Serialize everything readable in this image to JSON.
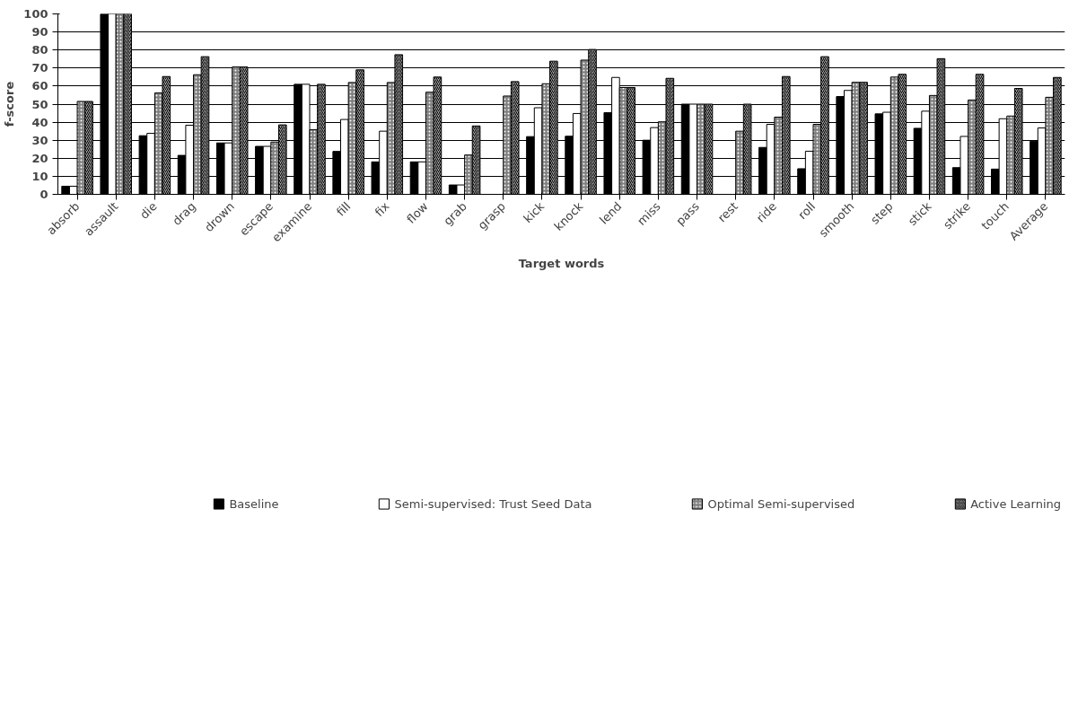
{
  "chart_data": {
    "type": "bar",
    "xlabel": "Target words",
    "ylabel": "f-score",
    "categories": [
      "absorb",
      "assault",
      "die",
      "drag",
      "drown",
      "escape",
      "examine",
      "fill",
      "fix",
      "flow",
      "grab",
      "grasp",
      "kick",
      "knock",
      "lend",
      "miss",
      "pass",
      "rest",
      "ride",
      "roll",
      "smooth",
      "step",
      "stick",
      "strike",
      "touch",
      "Average"
    ],
    "series": [
      {
        "name": "Baseline",
        "color": "#000000",
        "values": [
          4.5,
          100,
          32.5,
          21.6,
          28.5,
          26.6,
          61,
          23.8,
          18,
          18,
          5.2,
          null,
          32,
          32.2,
          45.3,
          30,
          50,
          null,
          26,
          14.2,
          54.2,
          44.6,
          36.6,
          14.8,
          14,
          29.4
        ]
      },
      {
        "name": "Semi-supervised: Trust Seed Data",
        "color": "#ffffff",
        "values": [
          4.5,
          100,
          33.8,
          38.3,
          28.5,
          26.6,
          61,
          41.5,
          35,
          18,
          5.2,
          null,
          48,
          44.8,
          64.8,
          37,
          50,
          null,
          38.8,
          23.9,
          57.6,
          45.5,
          46.1,
          32.1,
          41.9,
          36.8
        ]
      },
      {
        "name": "Optimal Semi-supervised",
        "color": "#808080",
        "values": [
          51.5,
          100,
          56.2,
          66.3,
          70.6,
          29,
          35.8,
          62,
          62,
          56.6,
          21.8,
          54.5,
          61.3,
          74.4,
          59.2,
          40.2,
          50,
          35,
          42.8,
          38.8,
          62.1,
          65,
          54.8,
          52.3,
          43.4,
          53.8
        ]
      },
      {
        "name": "Active Learning",
        "color": "#a0a0a0",
        "values": [
          51.5,
          100,
          65.3,
          76.3,
          70.6,
          38.5,
          61,
          69,
          77.4,
          65,
          37.9,
          62.5,
          73.8,
          80.3,
          59.2,
          64.3,
          50,
          50,
          65.3,
          76.3,
          62.1,
          66.5,
          75.2,
          66.5,
          58.7,
          64.8
        ]
      }
    ],
    "ylim": [
      0,
      100
    ],
    "yticks": [
      0,
      10,
      20,
      30,
      40,
      50,
      60,
      70,
      80,
      90,
      100
    ],
    "grid": "y",
    "legend": "bottom"
  }
}
